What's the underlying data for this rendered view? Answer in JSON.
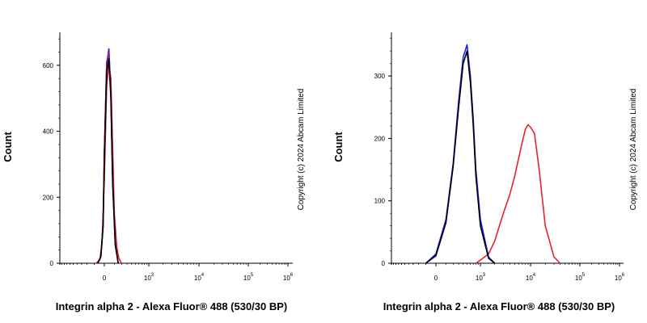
{
  "chart_data": [
    {
      "type": "line",
      "title": "",
      "xlabel": "Integrin alpha 2 - Alexa Fluor® 488 (530/30 BP)",
      "ylabel": "Count",
      "ylim": [
        0,
        700
      ],
      "yticks": [
        "0",
        "200",
        "400",
        "600"
      ],
      "xticks": [
        {
          "base": "0",
          "exp": ""
        },
        {
          "base": "10",
          "exp": "3"
        },
        {
          "base": "10",
          "exp": "4"
        },
        {
          "base": "10",
          "exp": "5"
        },
        {
          "base": "10",
          "exp": "6"
        }
      ],
      "copyright": "Copyright (c) 2024 Abcam Limited",
      "series": [
        {
          "color": "#e8222a",
          "x": [
            -80,
            -40,
            -20,
            0,
            20,
            40,
            60,
            80,
            100,
            130,
            160,
            200
          ],
          "y": [
            0,
            10,
            60,
            250,
            540,
            600,
            560,
            350,
            150,
            50,
            15,
            0
          ]
        },
        {
          "color": "#1a1aff",
          "x": [
            -60,
            -30,
            -10,
            0,
            20,
            40,
            60,
            80,
            110,
            150
          ],
          "y": [
            0,
            20,
            120,
            340,
            600,
            650,
            520,
            260,
            60,
            0
          ]
        },
        {
          "color": "#8b1a8b",
          "x": [
            -60,
            -30,
            -10,
            0,
            20,
            40,
            60,
            80,
            110,
            150
          ],
          "y": [
            0,
            20,
            120,
            330,
            610,
            640,
            510,
            250,
            60,
            0
          ]
        },
        {
          "color": "#000000",
          "x": [
            -60,
            -30,
            -10,
            0,
            20,
            40,
            60,
            80,
            110,
            150
          ],
          "y": [
            0,
            20,
            110,
            320,
            580,
            620,
            500,
            240,
            55,
            0
          ]
        }
      ]
    },
    {
      "type": "line",
      "title": "",
      "xlabel": "Integrin alpha 2 - Alexa Fluor® 488 (530/30 BP)",
      "ylabel": "Count",
      "ylim": [
        0,
        370
      ],
      "yticks": [
        "0",
        "100",
        "200",
        "300"
      ],
      "xticks": [
        {
          "base": "0",
          "exp": ""
        },
        {
          "base": "10",
          "exp": "3"
        },
        {
          "base": "10",
          "exp": "4"
        },
        {
          "base": "10",
          "exp": "5"
        },
        {
          "base": "10",
          "exp": "6"
        }
      ],
      "copyright": "Copyright (c) 2024 Abcam Limited",
      "series": [
        {
          "color": "#e8222a",
          "x": [
            800,
            1000,
            1500,
            2000,
            2500,
            3000,
            4000,
            5000,
            6000,
            7000,
            8000,
            9000,
            10000,
            12000,
            15000,
            20000,
            30000,
            40000
          ],
          "y": [
            0,
            5,
            15,
            35,
            60,
            80,
            110,
            140,
            170,
            195,
            215,
            222,
            218,
            208,
            150,
            60,
            10,
            0
          ]
        },
        {
          "color": "#1a1aff",
          "x": [
            -100,
            0,
            100,
            200,
            300,
            400,
            500,
            600,
            700,
            800,
            1000,
            1500,
            2000
          ],
          "y": [
            0,
            15,
            70,
            160,
            260,
            330,
            350,
            300,
            230,
            150,
            70,
            10,
            0
          ]
        },
        {
          "color": "#000000",
          "x": [
            -100,
            0,
            100,
            200,
            300,
            400,
            500,
            600,
            700,
            800,
            1000,
            1500,
            2000
          ],
          "y": [
            0,
            12,
            65,
            155,
            250,
            320,
            340,
            290,
            220,
            140,
            60,
            8,
            0
          ]
        }
      ]
    }
  ]
}
